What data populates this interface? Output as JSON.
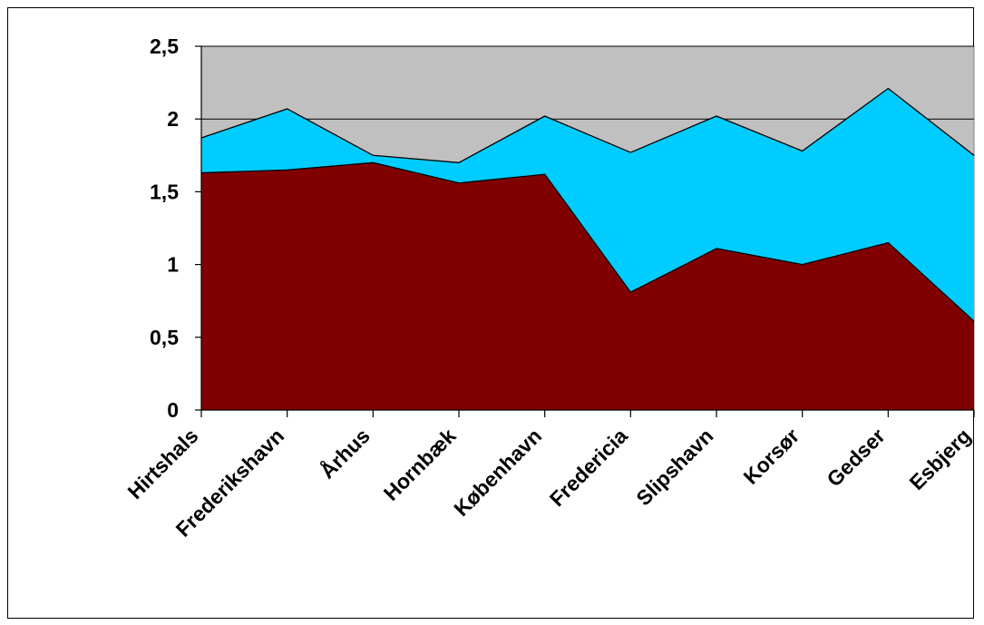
{
  "chart_data": {
    "type": "area",
    "stacked": false,
    "categories": [
      "Hirtshals",
      "Frederikshavn",
      "Århus",
      "Hornbæk",
      "København",
      "Fredericia",
      "Slipshavn",
      "Korsør",
      "Gedser",
      "Esbjerg"
    ],
    "ylim": [
      0,
      2.5
    ],
    "yticks": [
      "0",
      "0,5",
      "1",
      "1,5",
      "2",
      "2,5"
    ],
    "ytick_values": [
      0,
      0.5,
      1,
      1.5,
      2,
      2.5
    ],
    "grid": true,
    "legend": "none",
    "plot_background": "#c0c0c0",
    "series": [
      {
        "values": [
          1.87,
          2.07,
          1.75,
          1.7,
          2.02,
          1.77,
          2.02,
          1.78,
          2.21,
          1.75
        ],
        "color": "#00ccff"
      },
      {
        "values": [
          1.63,
          1.65,
          1.7,
          1.56,
          1.62,
          0.81,
          1.11,
          1.0,
          1.15,
          0.61
        ],
        "color": "#800000"
      }
    ]
  }
}
